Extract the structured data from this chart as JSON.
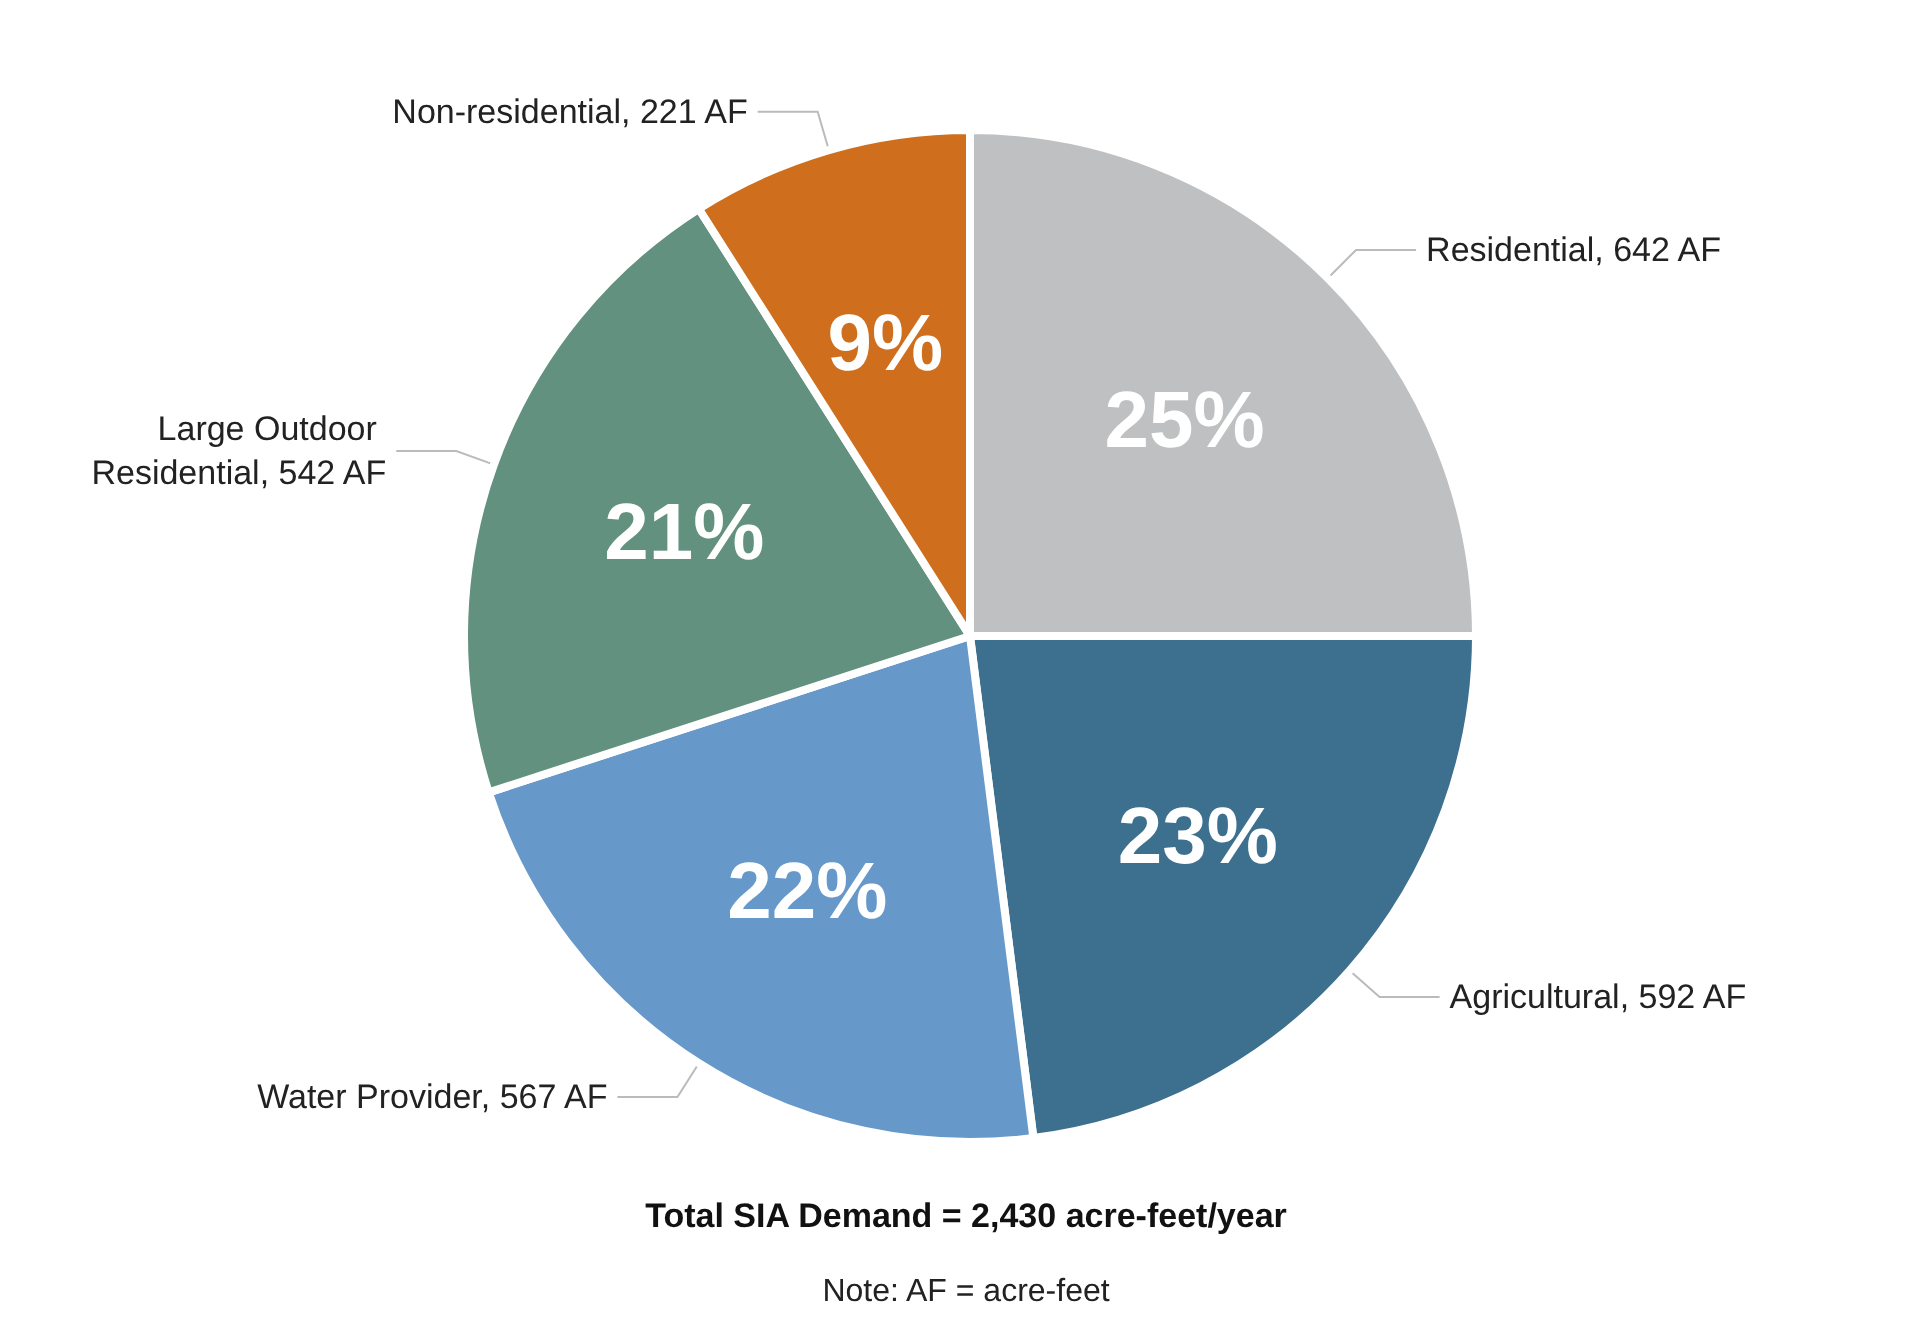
{
  "chart_data": {
    "type": "pie",
    "title": "Total SIA Demand = 2,430 acre-feet/year",
    "annotations": [
      "Note: AF = acre-feet"
    ],
    "categories": [
      "Residential, 642 AF",
      "Agricultural, 592 AF",
      "Water Provider, 567 AF",
      "Large Outdoor Residential, 542 AF",
      "Non-residential, 221 AF"
    ],
    "values": [
      25,
      23,
      22,
      21,
      9
    ],
    "colors": [
      "#bfc0c2",
      "#3d6f8e",
      "#6699c9",
      "#62917f",
      "#cf6f1d"
    ],
    "value_labels": [
      "25%",
      "23%",
      "22%",
      "21%",
      "9%"
    ]
  }
}
